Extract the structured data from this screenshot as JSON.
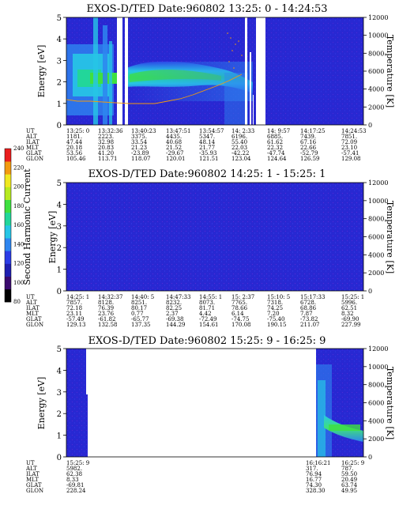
{
  "colorbar": {
    "label": "Second Harmonic Current",
    "ticks": [
      "80",
      "100",
      "120",
      "140",
      "160",
      "180",
      "200",
      "220",
      "240"
    ],
    "colors": [
      "#000000",
      "#3a0a6e",
      "#1f1fb0",
      "#2b3ce6",
      "#2e86f0",
      "#27c6e6",
      "#22d69a",
      "#3fe040",
      "#b7ea20",
      "#f0e820",
      "#f29a10",
      "#ea1e1e"
    ]
  },
  "chart_data": [
    {
      "type": "heatmap",
      "title": "EXOS-D/TED   Date:960802  13:25: 0 - 14:24:53",
      "ylabel": "Energy [eV]",
      "y2label": "Temperature [K]",
      "ylim": [
        0,
        5
      ],
      "y2lim": [
        0,
        12000
      ],
      "yticks": [
        "0",
        "1",
        "2",
        "3",
        "4",
        "5"
      ],
      "y2ticks": [
        "0",
        "2000",
        "4000",
        "6000",
        "8000",
        "10000",
        "12000"
      ],
      "table": {
        "row_labels": [
          "UT",
          "ALT",
          "ILAT",
          "MLT",
          "GLAT",
          "GLON"
        ],
        "columns": [
          [
            "13:25: 0",
            "1181.",
            "47.44",
            "20.18",
            "53.56",
            "105.46"
          ],
          [
            "13:32:36",
            "2223.",
            "32.98",
            "20.83",
            "41.20",
            "113.71"
          ],
          [
            "13:40:23",
            "3375.",
            "33.54",
            "21.23",
            "-23.89",
            "118.07"
          ],
          [
            "13:47:51",
            "4435.",
            "40.68",
            "21.52",
            "-29.67",
            "120.01"
          ],
          [
            "13:54:57",
            "5347.",
            "48.14",
            "21.77",
            "-35.93",
            "121.51"
          ],
          [
            "14: 2:33",
            "6196.",
            "55.40",
            "22.03",
            "-42.22",
            "123.04"
          ],
          [
            "14: 9:57",
            "6885.",
            "61.62",
            "22.32",
            "-47.74",
            "124.64"
          ],
          [
            "14:17:25",
            "7439.",
            "67.16",
            "22.66",
            "-52.79",
            "126.59"
          ],
          [
            "14:24:53",
            "7851.",
            "72.09",
            "23.10",
            "-57.41",
            "129.08"
          ]
        ]
      }
    },
    {
      "type": "heatmap",
      "title": "EXOS-D/TED   Date:960802  14:25: 1 - 15:25: 1",
      "ylabel": "Energy [eV]",
      "y2label": "Temperature [K]",
      "ylim": [
        0,
        5
      ],
      "y2lim": [
        0,
        12000
      ],
      "yticks": [
        "0",
        "1",
        "2",
        "3",
        "4",
        "5"
      ],
      "y2ticks": [
        "0",
        "2000",
        "4000",
        "6000",
        "8000",
        "10000",
        "12000"
      ],
      "table": {
        "row_labels": [
          "UT",
          "ALT",
          "ILAT",
          "MLT",
          "GLAT",
          "GLON"
        ],
        "columns": [
          [
            "14:25: 1",
            "7857.",
            "72.18",
            "23.11",
            "-57.49",
            "129.13"
          ],
          [
            "14:32:37",
            "8128.",
            "76.39",
            "23.76",
            "-61.82",
            "132.58"
          ],
          [
            "14:40: 5",
            "8251.",
            "80.17",
            "0.77",
            "-65.77",
            "137.35"
          ],
          [
            "14:47:33",
            "8232.",
            "82.25",
            "2.37",
            "-69.38",
            "144.29"
          ],
          [
            "14:55: 1",
            "8073.",
            "81.71",
            "4.42",
            "-72.49",
            "154.61"
          ],
          [
            "15: 2:37",
            "7765.",
            "78.66",
            "6.14",
            "-74.75",
            "170.08"
          ],
          [
            "15:10: 5",
            "7318.",
            "74.25",
            "7.20",
            "-75.40",
            "190.15"
          ],
          [
            "15:17:33",
            "6728.",
            "68.86",
            "7.87",
            "-73.82",
            "211.07"
          ],
          [
            "15:25: 1",
            "5996.",
            "62.51",
            "8.32",
            "-69.90",
            "227.99"
          ]
        ]
      }
    },
    {
      "type": "heatmap",
      "title": "EXOS-D/TED   Date:960802  15:25: 9 - 16:25: 9",
      "ylabel": "Energy [eV]",
      "y2label": "Temperature [K]",
      "ylim": [
        0,
        5
      ],
      "y2lim": [
        0,
        12000
      ],
      "yticks": [
        "0",
        "1",
        "2",
        "3",
        "4",
        "5"
      ],
      "y2ticks": [
        "0",
        "2000",
        "4000",
        "6000",
        "8000",
        "10000",
        "12000"
      ],
      "table": {
        "row_labels": [
          "UT",
          "ALT",
          "ILAT",
          "MLT",
          "GLAT",
          "GLON"
        ],
        "columns": [
          [
            "15:25: 9",
            "5982.",
            "62.38",
            "8.33",
            "-69.81",
            "228.24"
          ],
          [
            "16:16:21",
            "317.",
            "76.94",
            "16.77",
            "74.30",
            "328.30"
          ],
          [
            "16:25: 9",
            "787.",
            "59.50",
            "20.49",
            "63.74",
            "49.95"
          ]
        ]
      }
    }
  ]
}
